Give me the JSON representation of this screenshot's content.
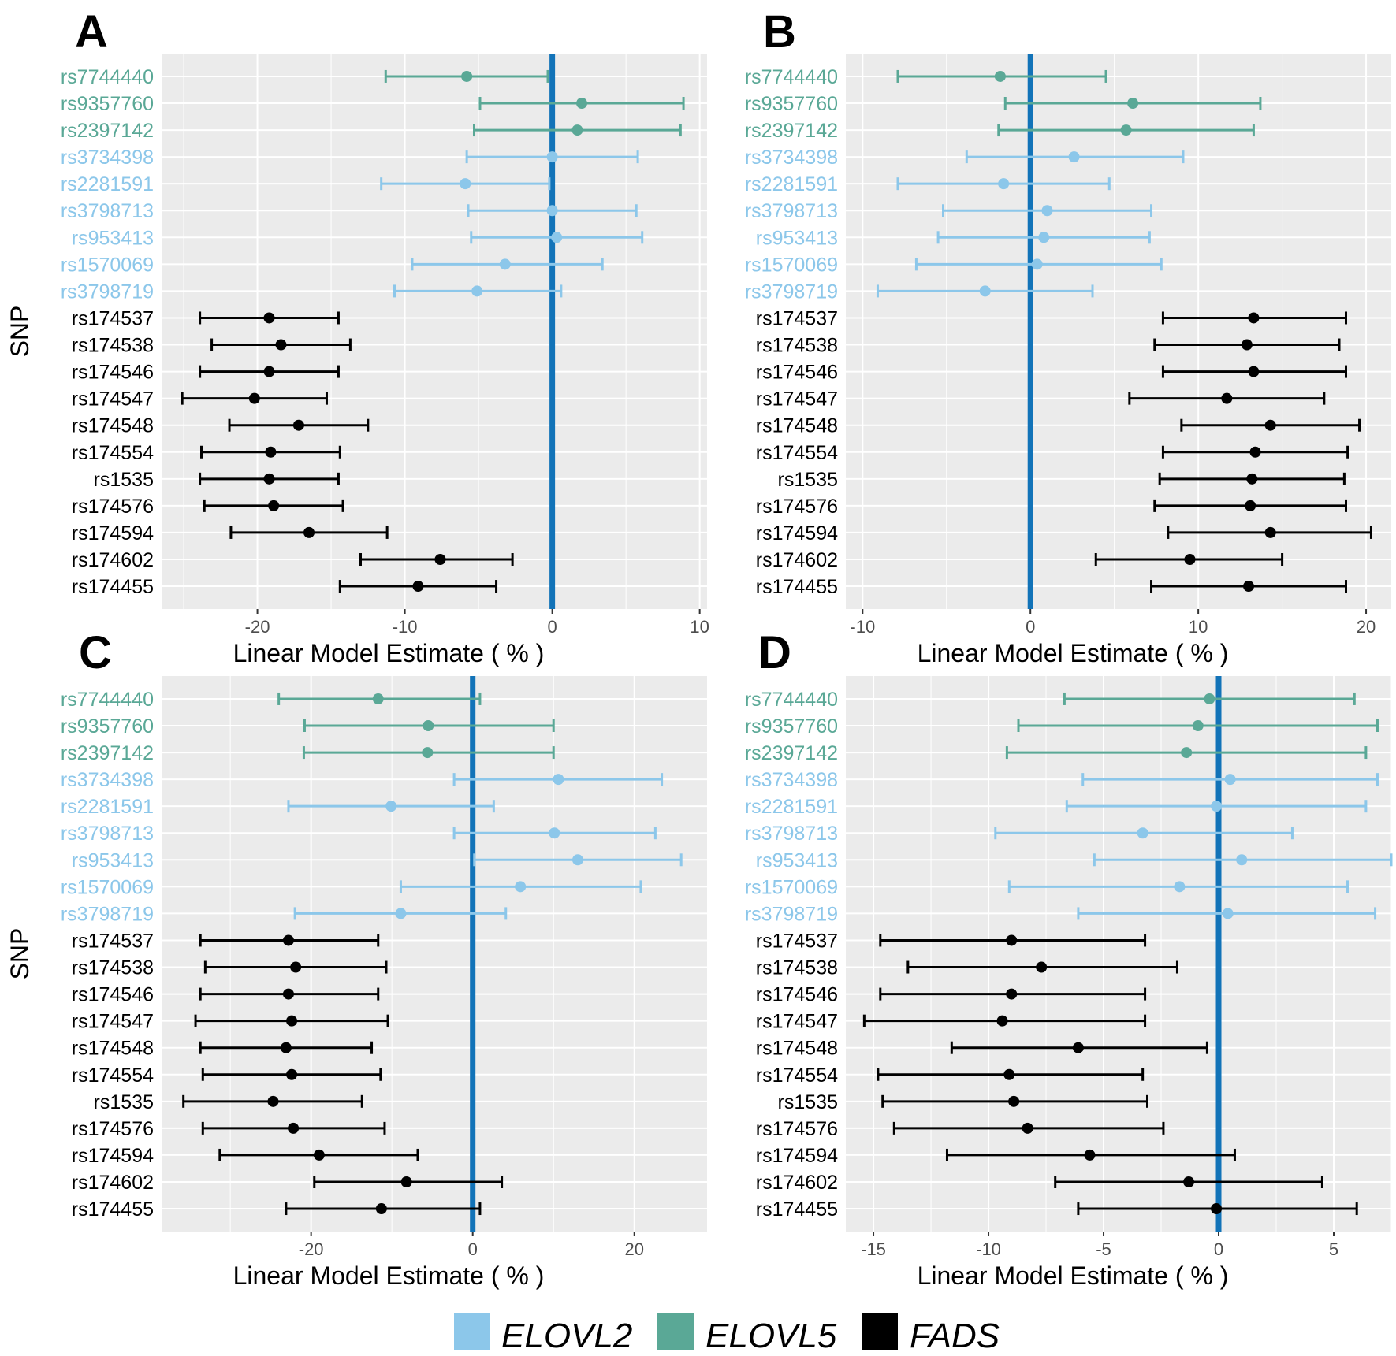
{
  "legend": [
    {
      "label": "ELOVL2",
      "color": "#8cc7ea"
    },
    {
      "label": "ELOVL5",
      "color": "#5aa896"
    },
    {
      "label": "FADS",
      "color": "#000000"
    }
  ],
  "colors": {
    "ELOVL2": "#8cc7ea",
    "ELOVL5": "#5aa896",
    "FADS": "#000000",
    "zero_line": "#1273b8",
    "panel_bg": "#ebebeb",
    "grid": "#ffffff"
  },
  "chart_data": [
    {
      "panel": "A",
      "type": "scatter",
      "xlabel": "Linear Model Estimate ( % )",
      "ylabel": "SNP",
      "xlim": [
        -26.5,
        10.5
      ],
      "xticks": [
        -20,
        -10,
        0,
        10
      ],
      "xtick_labels": [
        "-20",
        "-10",
        "0",
        "10"
      ],
      "snps": [
        "rs7744440",
        "rs9357760",
        "rs2397142",
        "rs3734398",
        "rs2281591",
        "rs3798713",
        "rs953413",
        "rs1570069",
        "rs3798719",
        "rs174537",
        "rs174538",
        "rs174546",
        "rs174547",
        "rs174548",
        "rs174554",
        "rs1535",
        "rs174576",
        "rs174594",
        "rs174602",
        "rs174455"
      ],
      "groups": [
        "ELOVL5",
        "ELOVL5",
        "ELOVL5",
        "ELOVL2",
        "ELOVL2",
        "ELOVL2",
        "ELOVL2",
        "ELOVL2",
        "ELOVL2",
        "FADS",
        "FADS",
        "FADS",
        "FADS",
        "FADS",
        "FADS",
        "FADS",
        "FADS",
        "FADS",
        "FADS",
        "FADS"
      ],
      "estimate": [
        -5.8,
        2.0,
        1.7,
        0.0,
        -5.9,
        0.0,
        0.3,
        -3.2,
        -5.1,
        -19.2,
        -18.4,
        -19.2,
        -20.2,
        -17.2,
        -19.1,
        -19.2,
        -18.9,
        -16.5,
        -7.6,
        -9.1
      ],
      "lower": [
        -11.3,
        -4.9,
        -5.3,
        -5.8,
        -11.6,
        -5.7,
        -5.5,
        -9.5,
        -10.7,
        -23.9,
        -23.1,
        -23.9,
        -25.1,
        -21.9,
        -23.8,
        -23.9,
        -23.6,
        -21.8,
        -13.0,
        -14.4
      ],
      "upper": [
        -0.3,
        8.9,
        8.7,
        5.8,
        -0.2,
        5.7,
        6.1,
        3.4,
        0.6,
        -14.5,
        -13.7,
        -14.5,
        -15.3,
        -12.5,
        -14.4,
        -14.5,
        -14.2,
        -11.2,
        -2.7,
        -3.8
      ]
    },
    {
      "panel": "B",
      "type": "scatter",
      "xlabel": "Linear Model Estimate ( % )",
      "ylabel": "",
      "xlim": [
        -11,
        21.5
      ],
      "xticks": [
        -10,
        0,
        10,
        20
      ],
      "xtick_labels": [
        "-10",
        "0",
        "10",
        "20"
      ],
      "snps": [
        "rs7744440",
        "rs9357760",
        "rs2397142",
        "rs3734398",
        "rs2281591",
        "rs3798713",
        "rs953413",
        "rs1570069",
        "rs3798719",
        "rs174537",
        "rs174538",
        "rs174546",
        "rs174547",
        "rs174548",
        "rs174554",
        "rs1535",
        "rs174576",
        "rs174594",
        "rs174602",
        "rs174455"
      ],
      "groups": [
        "ELOVL5",
        "ELOVL5",
        "ELOVL5",
        "ELOVL2",
        "ELOVL2",
        "ELOVL2",
        "ELOVL2",
        "ELOVL2",
        "ELOVL2",
        "FADS",
        "FADS",
        "FADS",
        "FADS",
        "FADS",
        "FADS",
        "FADS",
        "FADS",
        "FADS",
        "FADS",
        "FADS"
      ],
      "estimate": [
        -1.8,
        6.1,
        5.7,
        2.6,
        -1.6,
        1.0,
        0.8,
        0.4,
        -2.7,
        13.3,
        12.9,
        13.3,
        11.7,
        14.3,
        13.4,
        13.2,
        13.1,
        14.3,
        9.5,
        13.0
      ],
      "lower": [
        -7.9,
        -1.5,
        -1.9,
        -3.8,
        -7.9,
        -5.2,
        -5.5,
        -6.8,
        -9.1,
        7.9,
        7.4,
        7.9,
        5.9,
        9.0,
        7.9,
        7.7,
        7.4,
        8.2,
        3.9,
        7.2
      ],
      "upper": [
        4.5,
        13.7,
        13.3,
        9.1,
        4.7,
        7.2,
        7.1,
        7.8,
        3.7,
        18.8,
        18.4,
        18.8,
        17.5,
        19.6,
        18.9,
        18.7,
        18.8,
        20.3,
        15.0,
        18.8
      ]
    },
    {
      "panel": "C",
      "type": "scatter",
      "xlabel": "Linear Model Estimate ( % )",
      "ylabel": "SNP",
      "xlim": [
        -38.5,
        29
      ],
      "xticks": [
        -20,
        0,
        20
      ],
      "xtick_labels": [
        "-20",
        "0",
        "20"
      ],
      "snps": [
        "rs7744440",
        "rs9357760",
        "rs2397142",
        "rs3734398",
        "rs2281591",
        "rs3798713",
        "rs953413",
        "rs1570069",
        "rs3798719",
        "rs174537",
        "rs174538",
        "rs174546",
        "rs174547",
        "rs174548",
        "rs174554",
        "rs1535",
        "rs174576",
        "rs174594",
        "rs174602",
        "rs174455"
      ],
      "groups": [
        "ELOVL5",
        "ELOVL5",
        "ELOVL5",
        "ELOVL2",
        "ELOVL2",
        "ELOVL2",
        "ELOVL2",
        "ELOVL2",
        "ELOVL2",
        "FADS",
        "FADS",
        "FADS",
        "FADS",
        "FADS",
        "FADS",
        "FADS",
        "FADS",
        "FADS",
        "FADS",
        "FADS"
      ],
      "estimate": [
        -11.7,
        -5.5,
        -5.6,
        10.6,
        -10.1,
        10.1,
        13.0,
        5.9,
        -8.9,
        -22.8,
        -21.9,
        -22.8,
        -22.4,
        -23.1,
        -22.4,
        -24.7,
        -22.2,
        -19.0,
        -8.2,
        -11.3
      ],
      "lower": [
        -24.0,
        -20.8,
        -20.9,
        -2.3,
        -22.8,
        -2.3,
        0.2,
        -8.9,
        -22.0,
        -33.7,
        -33.1,
        -33.7,
        -34.3,
        -33.7,
        -33.4,
        -35.8,
        -33.4,
        -31.3,
        -19.6,
        -23.1
      ],
      "upper": [
        0.9,
        10.0,
        10.0,
        23.4,
        2.6,
        22.6,
        25.8,
        20.8,
        4.1,
        -11.7,
        -10.7,
        -11.7,
        -10.5,
        -12.5,
        -11.4,
        -13.7,
        -10.9,
        -6.8,
        3.6,
        0.9
      ]
    },
    {
      "panel": "D",
      "type": "scatter",
      "xlabel": "Linear Model Estimate ( % )",
      "ylabel": "",
      "xlim": [
        -16.2,
        7.5
      ],
      "xticks": [
        -15,
        -10,
        -5,
        0,
        5
      ],
      "xtick_labels": [
        "-15",
        "-10",
        "-5",
        "0",
        "5"
      ],
      "snps": [
        "rs7744440",
        "rs9357760",
        "rs2397142",
        "rs3734398",
        "rs2281591",
        "rs3798713",
        "rs953413",
        "rs1570069",
        "rs3798719",
        "rs174537",
        "rs174538",
        "rs174546",
        "rs174547",
        "rs174548",
        "rs174554",
        "rs1535",
        "rs174576",
        "rs174594",
        "rs174602",
        "rs174455"
      ],
      "groups": [
        "ELOVL5",
        "ELOVL5",
        "ELOVL5",
        "ELOVL2",
        "ELOVL2",
        "ELOVL2",
        "ELOVL2",
        "ELOVL2",
        "ELOVL2",
        "FADS",
        "FADS",
        "FADS",
        "FADS",
        "FADS",
        "FADS",
        "FADS",
        "FADS",
        "FADS",
        "FADS",
        "FADS"
      ],
      "estimate": [
        -0.4,
        -0.9,
        -1.4,
        0.5,
        -0.1,
        -3.3,
        1.0,
        -1.7,
        0.4,
        -9.0,
        -7.7,
        -9.0,
        -9.4,
        -6.1,
        -9.1,
        -8.9,
        -8.3,
        -5.6,
        -1.3,
        -0.1
      ],
      "lower": [
        -6.7,
        -8.7,
        -9.2,
        -5.9,
        -6.6,
        -9.7,
        -5.4,
        -9.1,
        -6.1,
        -14.7,
        -13.5,
        -14.7,
        -15.4,
        -11.6,
        -14.8,
        -14.6,
        -14.1,
        -11.8,
        -7.1,
        -6.1
      ],
      "upper": [
        5.9,
        6.9,
        6.4,
        6.9,
        6.4,
        3.2,
        7.5,
        5.6,
        6.8,
        -3.2,
        -1.8,
        -3.2,
        -3.2,
        -0.5,
        -3.3,
        -3.1,
        -2.4,
        0.7,
        4.5,
        6.0
      ]
    }
  ]
}
